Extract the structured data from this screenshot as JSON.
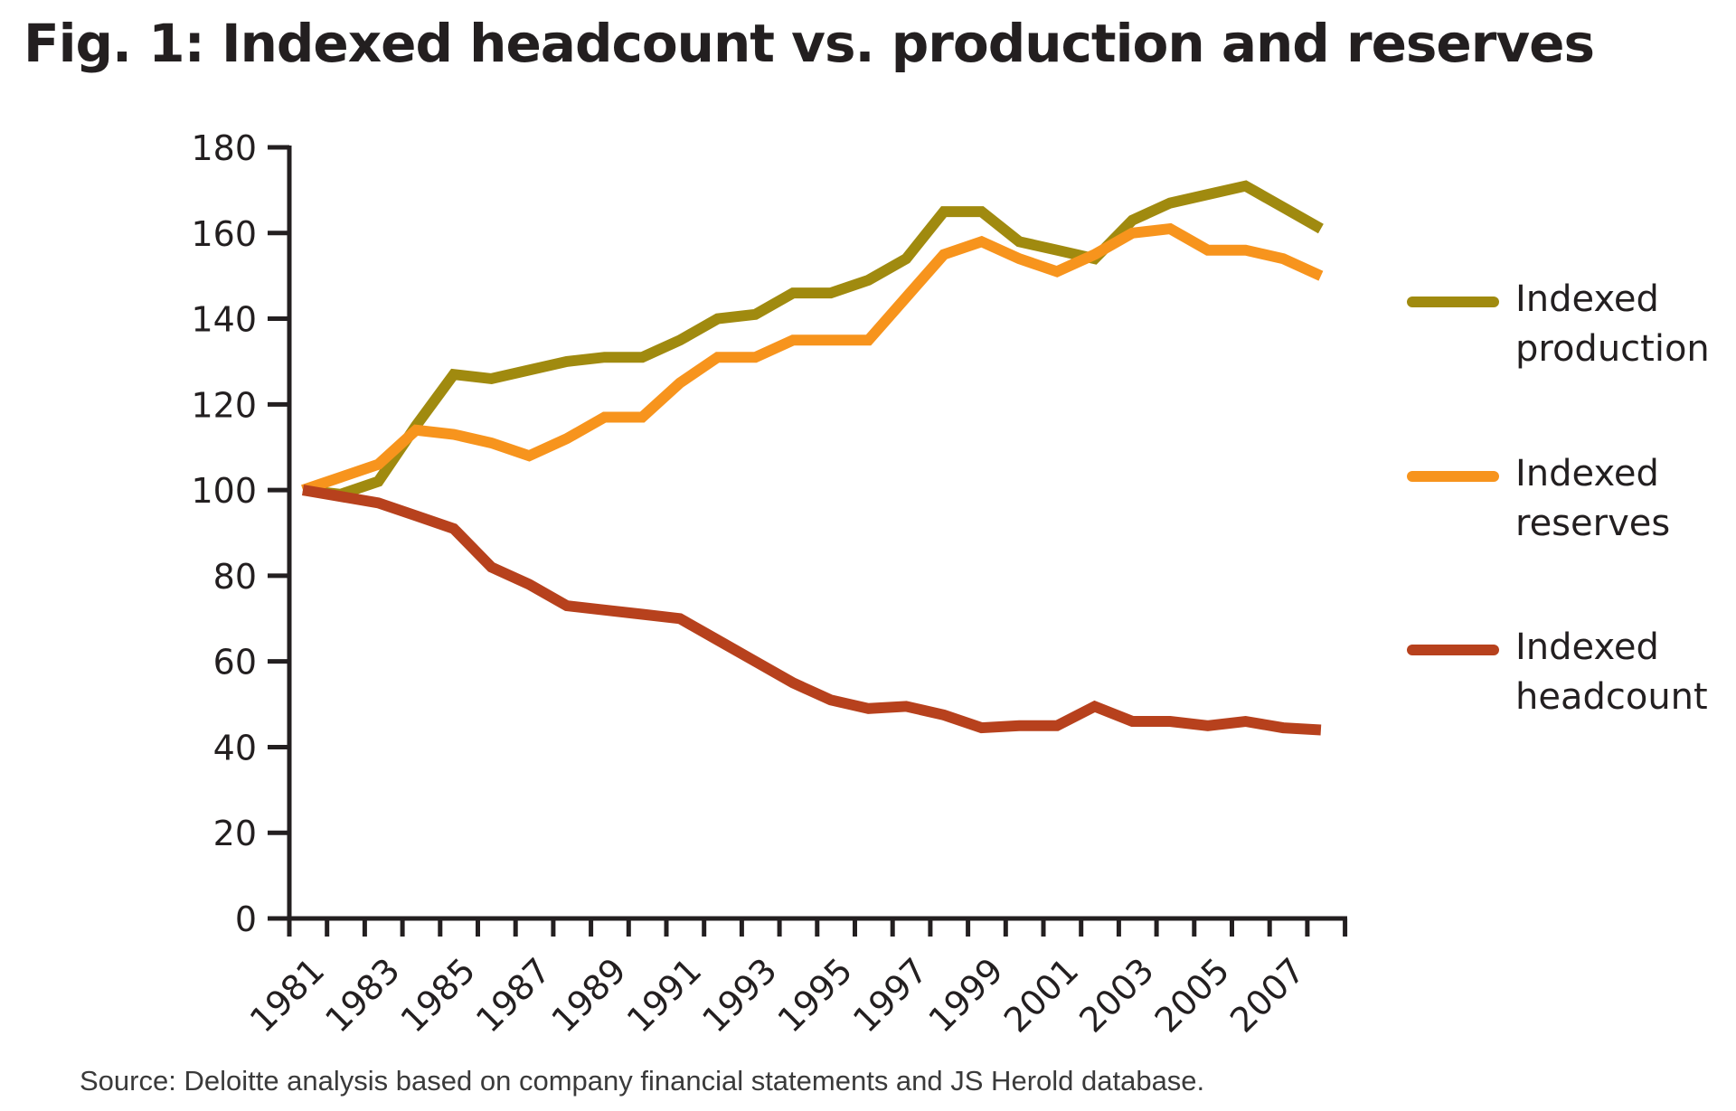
{
  "title": "Fig. 1: Indexed headcount vs. production and reserves",
  "source_note": "Source: Deloitte analysis based on company financial statements and JS Herold database.",
  "chart_data": {
    "type": "line",
    "title": "Fig. 1: Indexed headcount vs. production and reserves",
    "xlabel": "",
    "ylabel": "",
    "x": [
      1981,
      1982,
      1983,
      1984,
      1985,
      1986,
      1987,
      1988,
      1989,
      1990,
      1991,
      1992,
      1993,
      1994,
      1995,
      1996,
      1997,
      1998,
      1999,
      2000,
      2001,
      2002,
      2003,
      2004,
      2005,
      2006,
      2007,
      2008
    ],
    "x_tick_labels": [
      "1981",
      "1983",
      "1985",
      "1987",
      "1989",
      "1991",
      "1993",
      "1995",
      "1997",
      "1999",
      "2001",
      "2003",
      "2005",
      "2007"
    ],
    "ylim": [
      0,
      180
    ],
    "y_ticks": [
      0,
      20,
      40,
      60,
      80,
      100,
      120,
      140,
      160,
      180
    ],
    "grid": false,
    "legend_position": "right",
    "series": [
      {
        "name": "Indexed production",
        "legend_lines": [
          "Indexed",
          "production"
        ],
        "color": "#a08a0f",
        "values": [
          100,
          99,
          102,
          115,
          127,
          126,
          128,
          130,
          131,
          131,
          135,
          140,
          141,
          146,
          146,
          149,
          154,
          165,
          165,
          158,
          156,
          154,
          163,
          167,
          169,
          171,
          166,
          161
        ]
      },
      {
        "name": "Indexed reserves",
        "legend_lines": [
          "Indexed",
          "reserves"
        ],
        "color": "#f7941d",
        "values": [
          100,
          103,
          106,
          114,
          113,
          111,
          108,
          112,
          117,
          117,
          125,
          131,
          131,
          135,
          135,
          135,
          145,
          155,
          158,
          154,
          151,
          155,
          160,
          161,
          156,
          156,
          154,
          150
        ]
      },
      {
        "name": "Indexed headcount",
        "legend_lines": [
          "Indexed",
          "headcount"
        ],
        "color": "#b7411d",
        "values": [
          100,
          98.5,
          97,
          94,
          91,
          82,
          78,
          73,
          72,
          71,
          70,
          65,
          60,
          55,
          51,
          49,
          49.5,
          47.5,
          44.5,
          45,
          45,
          49.5,
          46,
          46,
          45,
          46,
          44.5,
          44
        ]
      }
    ]
  }
}
